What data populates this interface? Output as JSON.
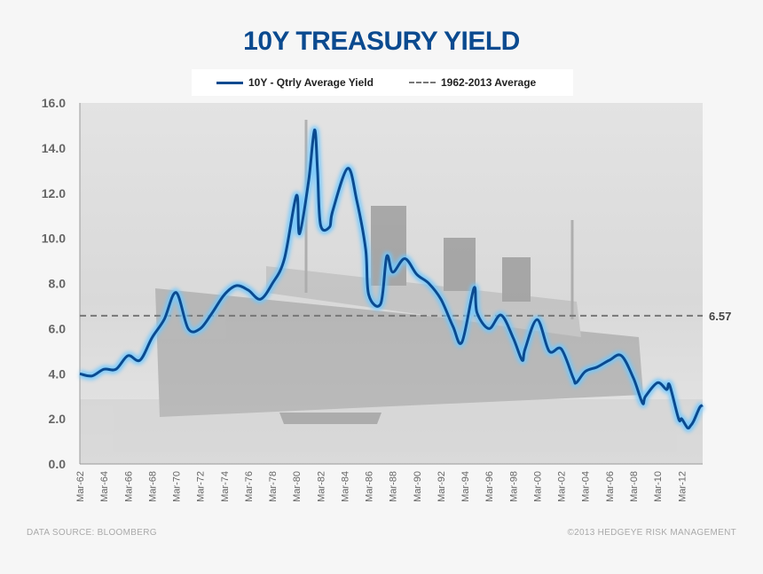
{
  "title": "10Y TREASURY YIELD",
  "legend": [
    {
      "label": "10Y - Qtrly Average Yield",
      "color": "#0b4a8f",
      "style": "solid"
    },
    {
      "label": "1962-2013 Average",
      "color": "#777777",
      "style": "dashed"
    }
  ],
  "footer": {
    "source": "DATA SOURCE: BLOOMBERG",
    "copyright": "©2013 HEDGEYE RISK MANAGEMENT"
  },
  "colors": {
    "series_line": "#0b4a8f",
    "series_glow": "#6fc8ff",
    "average_line": "#777777",
    "plot_background": "#dcdcdc"
  },
  "chart_data": {
    "type": "line",
    "title": "10Y TREASURY YIELD",
    "ylim": [
      0,
      16
    ],
    "yticks": [
      "0.0",
      "2.0",
      "4.0",
      "6.0",
      "8.0",
      "10.0",
      "12.0",
      "14.0",
      "16.0"
    ],
    "x_start": "Mar-62",
    "x_end": "Dec-13",
    "xticks": [
      "Mar-62",
      "Mar-64",
      "Mar-66",
      "Mar-68",
      "Mar-70",
      "Mar-72",
      "Mar-74",
      "Mar-76",
      "Mar-78",
      "Mar-80",
      "Mar-82",
      "Mar-84",
      "Mar-86",
      "Mar-88",
      "Mar-90",
      "Mar-92",
      "Mar-94",
      "Mar-96",
      "Mar-98",
      "Mar-00",
      "Mar-02",
      "Mar-04",
      "Mar-06",
      "Mar-08",
      "Mar-10",
      "Mar-12"
    ],
    "grid": false,
    "legend_position": "top-center",
    "series": [
      {
        "name": "10Y - Qtrly Average Yield",
        "x": [
          "Mar-62",
          "Mar-63",
          "Mar-64",
          "Mar-65",
          "Mar-66",
          "Mar-67",
          "Mar-68",
          "Mar-69",
          "Mar-70",
          "Mar-71",
          "Mar-72",
          "Mar-73",
          "Mar-74",
          "Mar-75",
          "Mar-76",
          "Mar-77",
          "Mar-78",
          "Mar-79",
          "Mar-80",
          "Jun-80",
          "Mar-81",
          "Sep-81",
          "Dec-81",
          "Mar-82",
          "Dec-82",
          "Mar-83",
          "Jun-84",
          "Mar-85",
          "Dec-85",
          "Mar-86",
          "Mar-87",
          "Sep-87",
          "Mar-88",
          "Mar-89",
          "Mar-90",
          "Mar-91",
          "Mar-92",
          "Mar-93",
          "Dec-93",
          "Dec-94",
          "Mar-95",
          "Mar-96",
          "Mar-97",
          "Mar-98",
          "Dec-98",
          "Mar-99",
          "Mar-00",
          "Mar-01",
          "Mar-02",
          "Mar-03",
          "Jun-03",
          "Mar-04",
          "Mar-05",
          "Mar-06",
          "Mar-07",
          "Mar-08",
          "Dec-08",
          "Mar-09",
          "Mar-10",
          "Dec-10",
          "Mar-11",
          "Dec-11",
          "Mar-12",
          "Sep-12",
          "Dec-12",
          "Mar-13",
          "Sep-13",
          "Dec-13"
        ],
        "y": [
          4.0,
          3.9,
          4.2,
          4.2,
          4.8,
          4.6,
          5.6,
          6.4,
          7.6,
          6.0,
          6.0,
          6.7,
          7.5,
          7.9,
          7.7,
          7.3,
          8.0,
          9.1,
          11.9,
          10.2,
          12.5,
          14.8,
          13.0,
          10.6,
          10.5,
          11.2,
          13.1,
          11.7,
          9.5,
          7.5,
          7.1,
          9.2,
          8.5,
          9.1,
          8.4,
          8.0,
          7.3,
          6.1,
          5.4,
          7.8,
          6.7,
          6.0,
          6.6,
          5.6,
          4.6,
          5.1,
          6.4,
          5.0,
          5.1,
          3.8,
          3.6,
          4.1,
          4.3,
          4.6,
          4.8,
          3.8,
          2.7,
          3.0,
          3.6,
          3.3,
          3.5,
          2.0,
          2.0,
          1.6,
          1.7,
          1.9,
          2.5,
          2.6
        ]
      },
      {
        "name": "1962-2013 Average",
        "value": 6.57,
        "label": "6.57"
      }
    ]
  }
}
